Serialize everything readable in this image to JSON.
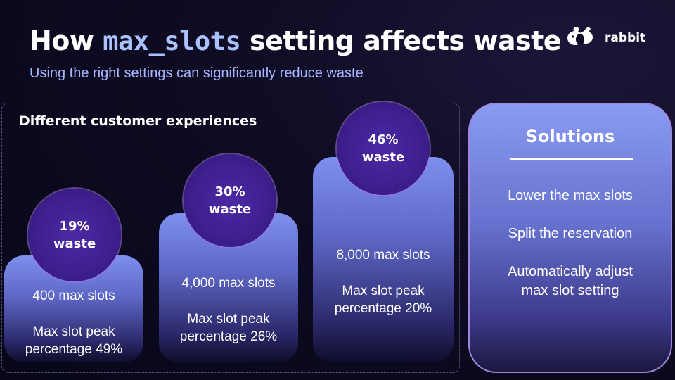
{
  "header": {
    "title_prefix": "How",
    "title_code": "max_slots",
    "title_suffix": "setting affects waste",
    "subtitle": "Using the right settings can significantly reduce waste"
  },
  "logo": {
    "name": "rabbit",
    "icon": "rabbit-logo-icon"
  },
  "experiences": {
    "heading": "Different customer experiences",
    "cards": [
      {
        "waste_value": "19%",
        "waste_label": "waste",
        "slots": "400 max slots",
        "peak_line1": "Max slot peak",
        "peak_line2": "percentage 49%"
      },
      {
        "waste_value": "30%",
        "waste_label": "waste",
        "slots": "4,000 max slots",
        "peak_line1": "Max slot peak",
        "peak_line2": "percentage 26%"
      },
      {
        "waste_value": "46%",
        "waste_label": "waste",
        "slots": "8,000 max slots",
        "peak_line1": "Max slot peak",
        "peak_line2": "percentage 20%"
      }
    ]
  },
  "solutions": {
    "heading": "Solutions",
    "items": [
      "Lower the max slots",
      "Split the reservation",
      "Automatically adjust",
      "max slot setting"
    ]
  },
  "colors": {
    "background": "#0e0b22",
    "code_accent": "#a9c1ff",
    "subtitle": "#a6b6ff",
    "bubble": "#3a1d88",
    "card_top": "#7e8fee"
  }
}
